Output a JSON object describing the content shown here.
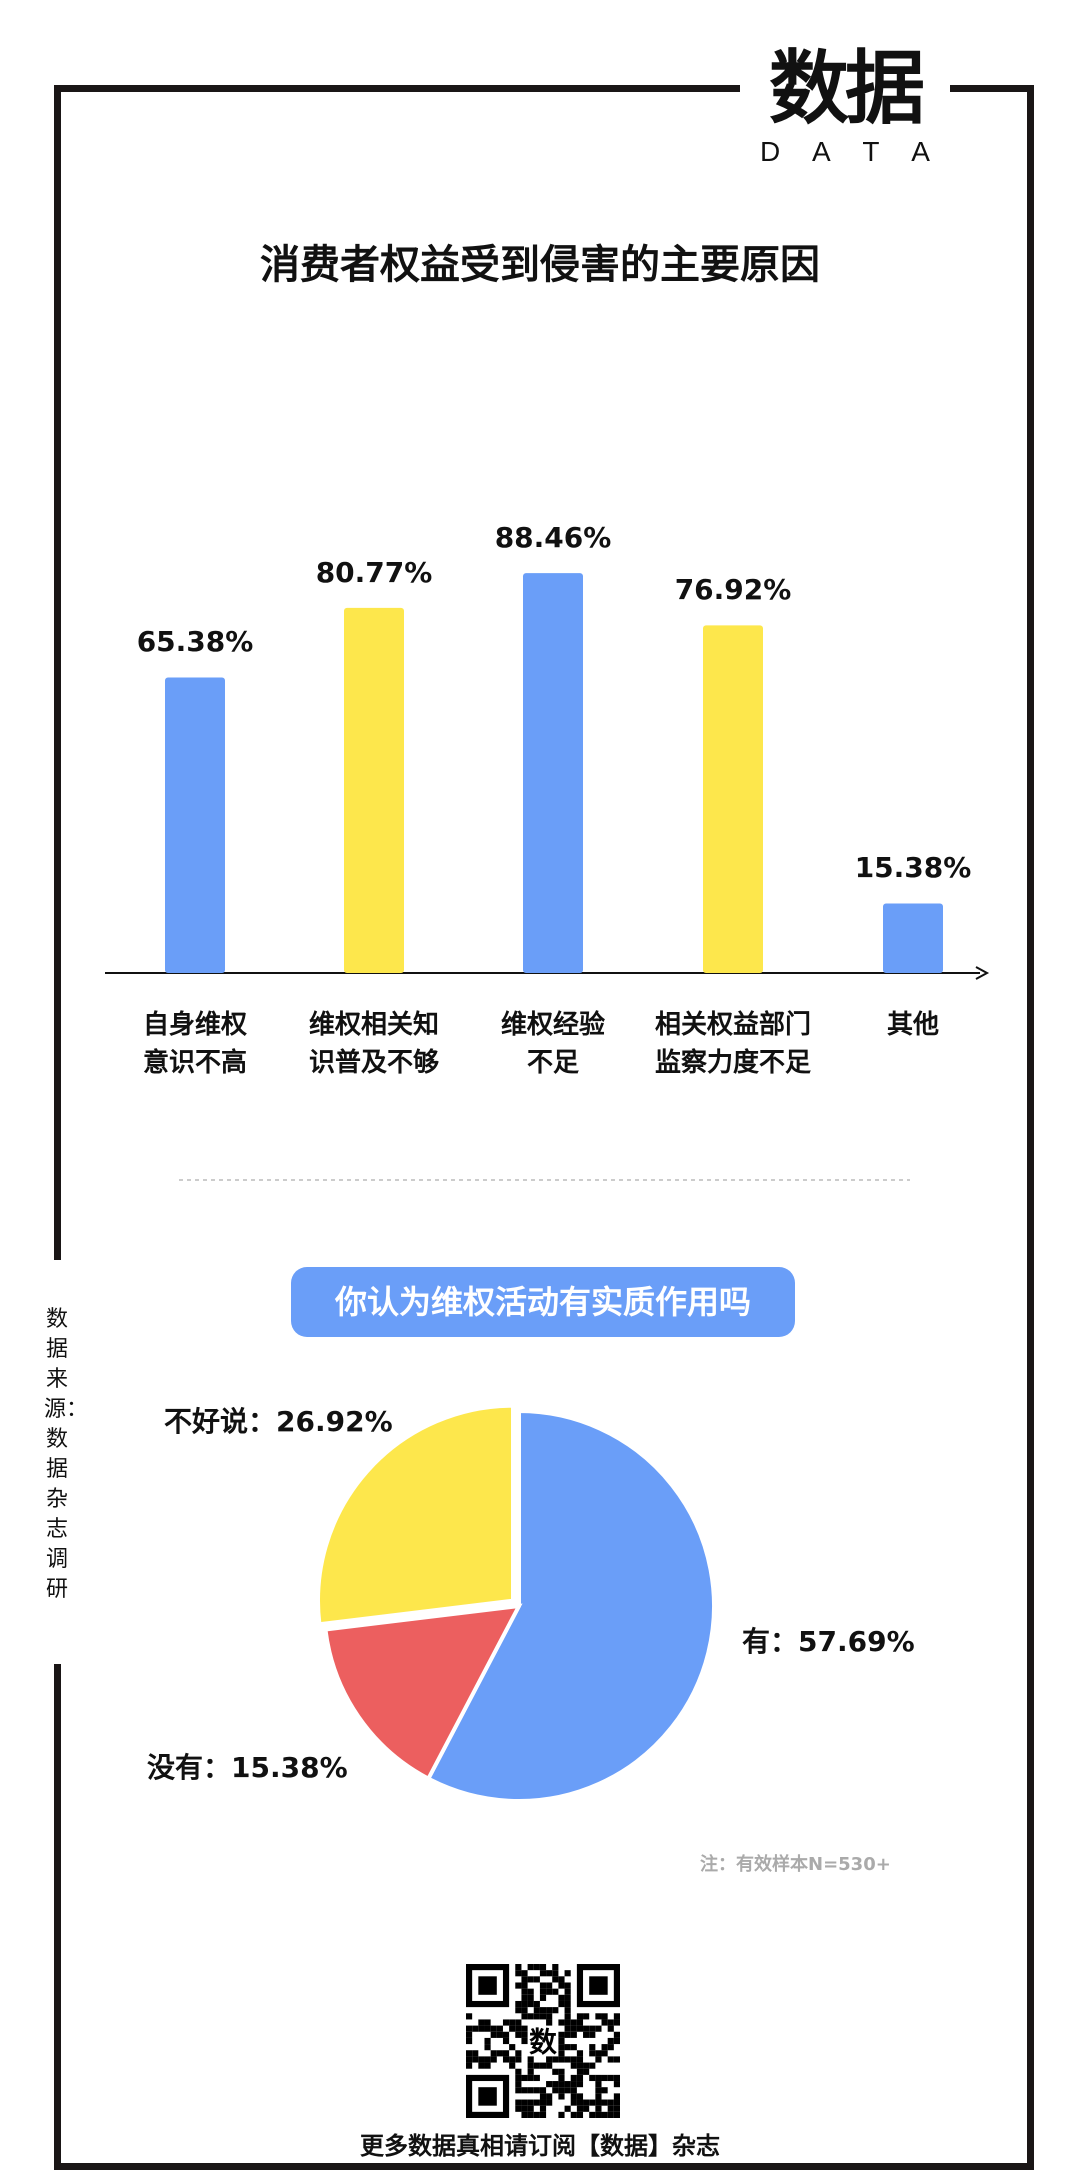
{
  "logo": {
    "zh": "数据",
    "en": [
      "D",
      "A",
      "T",
      "A"
    ]
  },
  "title": "消费者权益受到侵害的主要原因",
  "colors": {
    "blue": "#6a9ef8",
    "yellow": "#fde74c",
    "red": "#ec5f5f"
  },
  "chart_data": [
    {
      "type": "bar",
      "title": "消费者权益受到侵害的主要原因",
      "ylim": [
        0,
        100
      ],
      "categories": [
        [
          "自身维权",
          "意识不高"
        ],
        [
          "维权相关知",
          "识普及不够"
        ],
        [
          "维权经验",
          "不足"
        ],
        [
          "相关权益部门",
          "监察力度不足"
        ],
        [
          "其他"
        ]
      ],
      "values": [
        65.38,
        80.77,
        88.46,
        76.92,
        15.38
      ],
      "labels": [
        "65.38%",
        "80.77%",
        "88.46%",
        "76.92%",
        "15.38%"
      ],
      "bar_colors": [
        "blue",
        "yellow",
        "blue",
        "yellow",
        "blue"
      ]
    },
    {
      "type": "pie",
      "title": "你认为维权活动有实质作用吗",
      "slices": [
        {
          "name": "有",
          "value": 57.69,
          "label": "有：57.69%",
          "color": "blue"
        },
        {
          "name": "没有",
          "value": 15.38,
          "label": "没有：15.38%",
          "color": "red"
        },
        {
          "name": "不好说",
          "value": 26.92,
          "label": "不好说：26.92%",
          "color": "yellow"
        }
      ],
      "note": "注：有效样本N=530+"
    }
  ],
  "side_text": "数据来源：数据杂志调研",
  "footer": "更多数据真相请订阅【数据】杂志"
}
